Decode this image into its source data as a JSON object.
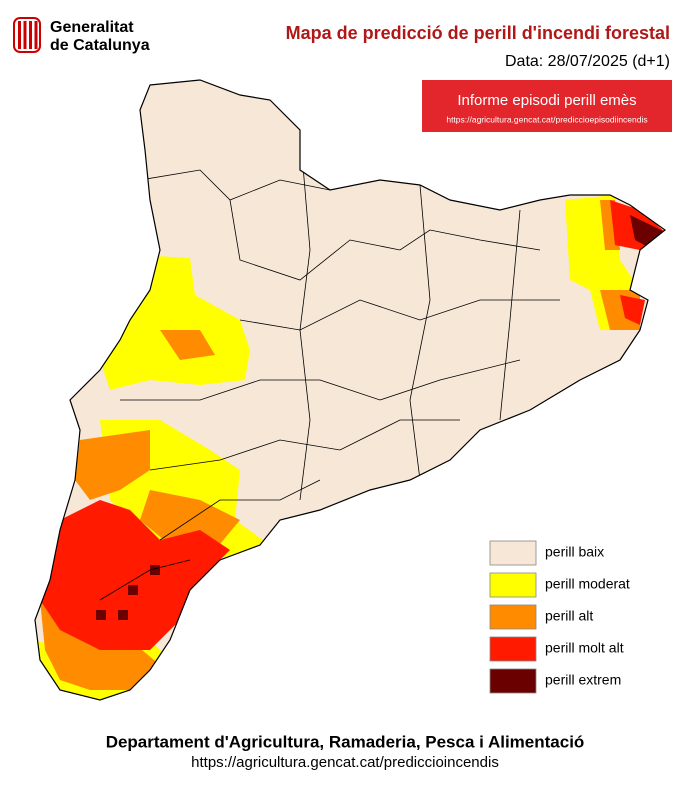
{
  "header": {
    "logo_line1": "Generalitat",
    "logo_line2": "de Catalunya",
    "title": "Mapa de predicció de perill d'incendi forestal",
    "date": "Data: 28/07/2025 (d+1)"
  },
  "alert": {
    "title": "Informe episodi perill emès",
    "url": "https://agricultura.gencat.cat/prediccioepisodiincendis"
  },
  "legend": [
    {
      "label": "perill baix",
      "color": "#f6e7d6"
    },
    {
      "label": "perill moderat",
      "color": "#ffff00"
    },
    {
      "label": "perill alt",
      "color": "#ff8c00"
    },
    {
      "label": "perill molt alt",
      "color": "#ff1a00"
    },
    {
      "label": "perill extrem",
      "color": "#6b0000"
    }
  ],
  "footer": {
    "department": "Departament d'Agricultura, Ramaderia, Pesca i Alimentació",
    "url": "https://agricultura.gencat.cat/prediccioincendis"
  }
}
